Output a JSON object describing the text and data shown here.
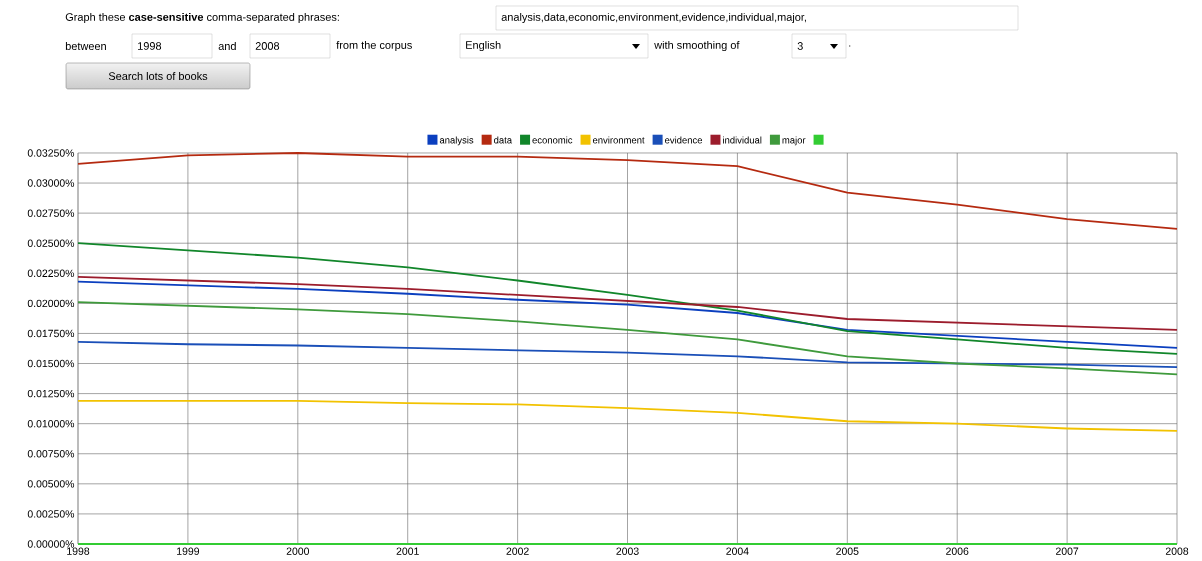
{
  "chart_data": {
    "type": "line",
    "annotations": [
      "Graph these **case-sensitive** comma-separated phrases:",
      "analysis,data,economic,environment,evidence,individual,major,",
      "between",
      "1998",
      "and",
      "2008",
      "from the corpus",
      "English",
      "with smoothing of",
      "3",
      ".",
      "Search lots of books"
    ],
    "x": [
      1998,
      1999,
      2000,
      2001,
      2002,
      2003,
      2004,
      2005,
      2006,
      2007,
      2008
    ],
    "series": [
      {
        "name": "analysis",
        "color": "#0b3fbf",
        "values": [
          0.0218,
          0.0215,
          0.0212,
          0.0208,
          0.0203,
          0.0199,
          0.0192,
          0.0178,
          0.0173,
          0.0168,
          0.0163
        ]
      },
      {
        "name": "data",
        "color": "#b52a10",
        "values": [
          0.0316,
          0.0323,
          0.0325,
          0.0322,
          0.0322,
          0.0319,
          0.0314,
          0.0292,
          0.0282,
          0.027,
          0.0262
        ]
      },
      {
        "name": "economic",
        "color": "#11862a",
        "values": [
          0.025,
          0.0244,
          0.0238,
          0.023,
          0.0219,
          0.0207,
          0.0194,
          0.0177,
          0.017,
          0.0163,
          0.0158
        ]
      },
      {
        "name": "environment",
        "color": "#f2c200",
        "values": [
          0.0119,
          0.0119,
          0.0119,
          0.0117,
          0.0116,
          0.0113,
          0.0109,
          0.0102,
          0.01,
          0.0096,
          0.0094
        ]
      },
      {
        "name": "evidence",
        "color": "#1a4fb8",
        "values": [
          0.0168,
          0.0166,
          0.0165,
          0.0163,
          0.0161,
          0.0159,
          0.0156,
          0.0151,
          0.015,
          0.0149,
          0.0147
        ]
      },
      {
        "name": "individual",
        "color": "#9c1c2c",
        "values": [
          0.0222,
          0.0219,
          0.0216,
          0.0212,
          0.0207,
          0.0202,
          0.0197,
          0.0187,
          0.0184,
          0.0181,
          0.0178
        ]
      },
      {
        "name": "major",
        "color": "#3f9a3c",
        "values": [
          0.0201,
          0.0198,
          0.0195,
          0.0191,
          0.0185,
          0.0178,
          0.017,
          0.0156,
          0.015,
          0.0146,
          0.0141
        ]
      },
      {
        "color": "#33cc33",
        "values": [
          0,
          0,
          0,
          0,
          0,
          0,
          0,
          0,
          0,
          0,
          0
        ]
      }
    ],
    "xlim": [
      1998,
      2008
    ],
    "xticks": [
      1998,
      1999,
      2000,
      2001,
      2002,
      2003,
      2004,
      2005,
      2006,
      2007,
      2008
    ],
    "ylim": [
      0,
      0.0325
    ],
    "yticks": [
      {
        "value": 0,
        "label": "0.00000%"
      },
      {
        "value": 0.0025,
        "label": "0.00250%"
      },
      {
        "value": 0.005,
        "label": "0.00500%"
      },
      {
        "value": 0.0075,
        "label": "0.00750%"
      },
      {
        "value": 0.01,
        "label": "0.01000%"
      },
      {
        "value": 0.0125,
        "label": "0.01250%"
      },
      {
        "value": 0.015,
        "label": "0.01500%"
      },
      {
        "value": 0.0175,
        "label": "0.01750%"
      },
      {
        "value": 0.02,
        "label": "0.02000%"
      },
      {
        "value": 0.0225,
        "label": "0.02250%"
      },
      {
        "value": 0.025,
        "label": "0.02500%"
      },
      {
        "value": 0.0275,
        "label": "0.02750%"
      },
      {
        "value": 0.03,
        "label": "0.03000%"
      },
      {
        "value": 0.0325,
        "label": "0.03250%"
      }
    ],
    "grid": true,
    "legend": "top"
  }
}
